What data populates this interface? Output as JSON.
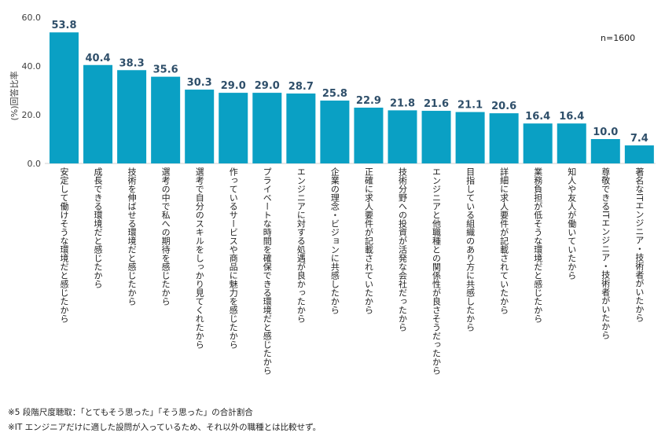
{
  "chart_data": {
    "type": "bar",
    "ylabel": "(%)回答比率",
    "ylim": [
      0,
      60
    ],
    "yticks": [
      "0.0",
      "20.0",
      "40.0",
      "60.0"
    ],
    "sample_size": "n=1600",
    "bar_color": "#0aa0c4",
    "grid": false,
    "categories": [
      "安定して働けそうな環境だと感じたから",
      "成長できる環境だと感じたから",
      "技術を伸ばせる環境だと感じたから",
      "選考の中で私への期待を感じたから",
      "選考で自分のスキルをしっかり見てくれたから",
      "作っているサービスや商品に魅力を感じたから",
      "プライベートな時間を確保できる環境だと感じたから",
      "エンジニアに対する処遇が良かったから",
      "企業の理念・ビジョンに共感したから",
      "正確に求人要件が記載されていたから",
      "技術分野への投資が活発な会社だったから",
      "エンジニアと他職種との関係性が良さそうだったから",
      "目指している組織のあり方に共感したから",
      "詳細に求人要件が記載されていたから",
      "業務負担が低そうな環境だと感じたから",
      "知人や友人が働いていたから",
      "尊敬できるITエンジニア・技術者がいたから",
      "著名なITエンジニア・技術者がいたから"
    ],
    "values": [
      53.8,
      40.4,
      38.3,
      35.6,
      30.3,
      29.0,
      29.0,
      28.7,
      25.8,
      22.9,
      21.8,
      21.6,
      21.1,
      20.6,
      16.4,
      16.4,
      10.0,
      7.4
    ],
    "value_labels": [
      "53.8",
      "40.4",
      "38.3",
      "35.6",
      "30.3",
      "29.0",
      "29.0",
      "28.7",
      "25.8",
      "22.9",
      "21.8",
      "21.6",
      "21.1",
      "20.6",
      "16.4",
      "16.4",
      "10.0",
      "7.4"
    ]
  },
  "notes": [
    "※5 段階尺度聴取：「とてもそう思った」「そう思った」の合計割合",
    "※IT エンジニアだけに適した設問が入っているため、それ以外の職種とは比較せず。"
  ]
}
